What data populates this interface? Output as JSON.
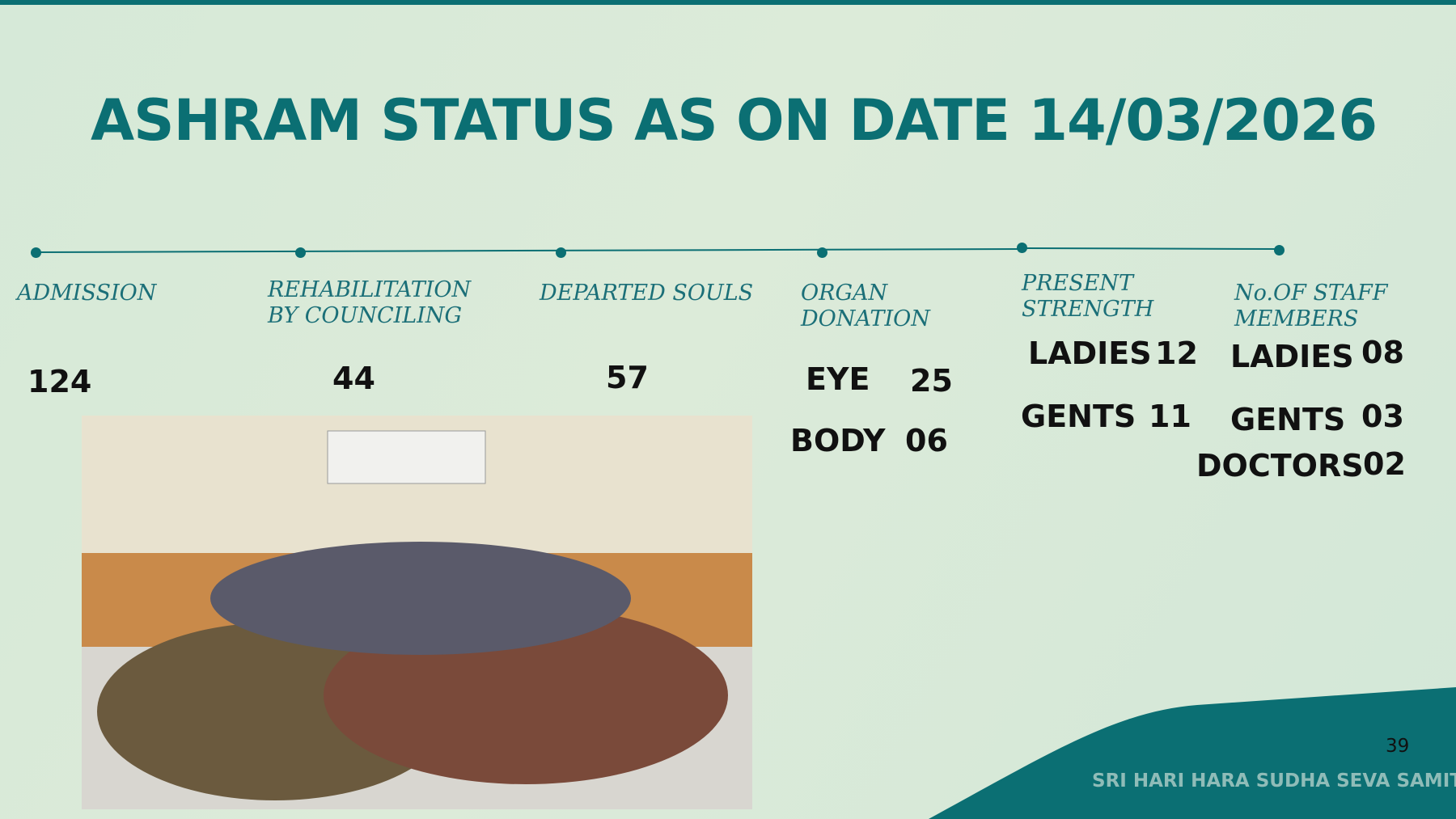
{
  "header": {
    "title": "ASHRAM STATUS AS ON DATE 14/03/2026"
  },
  "timeline": [
    {
      "label": "ADMISSION",
      "rows": [
        {
          "value": "124"
        }
      ]
    },
    {
      "label": "REHABILITATION BY COUNCILING",
      "rows": [
        {
          "value": "44"
        }
      ]
    },
    {
      "label": "DEPARTED SOULS",
      "rows": [
        {
          "value": "57"
        }
      ]
    },
    {
      "label": "ORGAN DONATION",
      "rows": [
        {
          "name": "EYE",
          "value": "25"
        },
        {
          "name": "BODY",
          "value": "06"
        }
      ]
    },
    {
      "label": "PRESENT STRENGTH",
      "rows": [
        {
          "name": "LADIES",
          "value": "12"
        },
        {
          "name": "GENTS",
          "value": "11"
        }
      ]
    },
    {
      "label": "No.OF STAFF MEMBERS",
      "rows": [
        {
          "name": "LADIES",
          "value": "08"
        },
        {
          "name": "GENTS",
          "value": "03"
        },
        {
          "name": "DOCTORS",
          "value": "02"
        }
      ]
    }
  ],
  "footer": {
    "page": "39",
    "organization": "SRI HARI HARA SUDHA SEVA SAMITHI"
  }
}
